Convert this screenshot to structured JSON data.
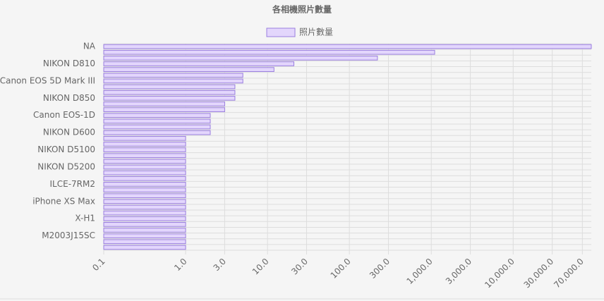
{
  "chart_data": {
    "type": "hbar",
    "title": "各相機照片數量",
    "legend": "top",
    "series": [
      {
        "name": "照片數量",
        "color": "#e3d6fc",
        "border_color": "#9a7ee0",
        "values": [
          90000,
          1100,
          220,
          21,
          12,
          5,
          5,
          4,
          4,
          4,
          3,
          3,
          2,
          2,
          2,
          2,
          1,
          1,
          1,
          1,
          1,
          1,
          1,
          1,
          1,
          1,
          1,
          1,
          1,
          1,
          1,
          1,
          1,
          1,
          1,
          1
        ]
      }
    ],
    "categories": [
      "NA",
      null,
      null,
      "NIKON D810",
      null,
      null,
      "Canon EOS 5D Mark III",
      null,
      null,
      "NIKON D850",
      null,
      null,
      "Canon EOS-1D",
      null,
      null,
      "NIKON D600",
      null,
      null,
      "NIKON D5100",
      null,
      null,
      "NIKON D5200",
      null,
      null,
      "ILCE-7RM2",
      null,
      null,
      "iPhone XS Max",
      null,
      null,
      "X-H1",
      null,
      null,
      "M2003J15SC",
      null,
      null
    ],
    "xscale": "log",
    "xlim": [
      0.1,
      90000
    ],
    "xticks": [
      0.1,
      {
        "value": 1,
        "label": "1.0"
      },
      {
        "value": 3,
        "label": "3.0"
      },
      {
        "value": 10,
        "label": "10.0"
      },
      {
        "value": 30,
        "label": "30.0"
      },
      {
        "value": 100,
        "label": "100.0"
      },
      {
        "value": 300,
        "label": "300.0"
      },
      {
        "value": 1000,
        "label": "1,000.0"
      },
      {
        "value": 3000,
        "label": "3,000.0"
      },
      {
        "value": 10000,
        "label": "10,000.0"
      },
      {
        "value": 30000,
        "label": "30,000.0"
      },
      {
        "value": 70000,
        "label": "70,000.0"
      }
    ],
    "grid": true
  }
}
